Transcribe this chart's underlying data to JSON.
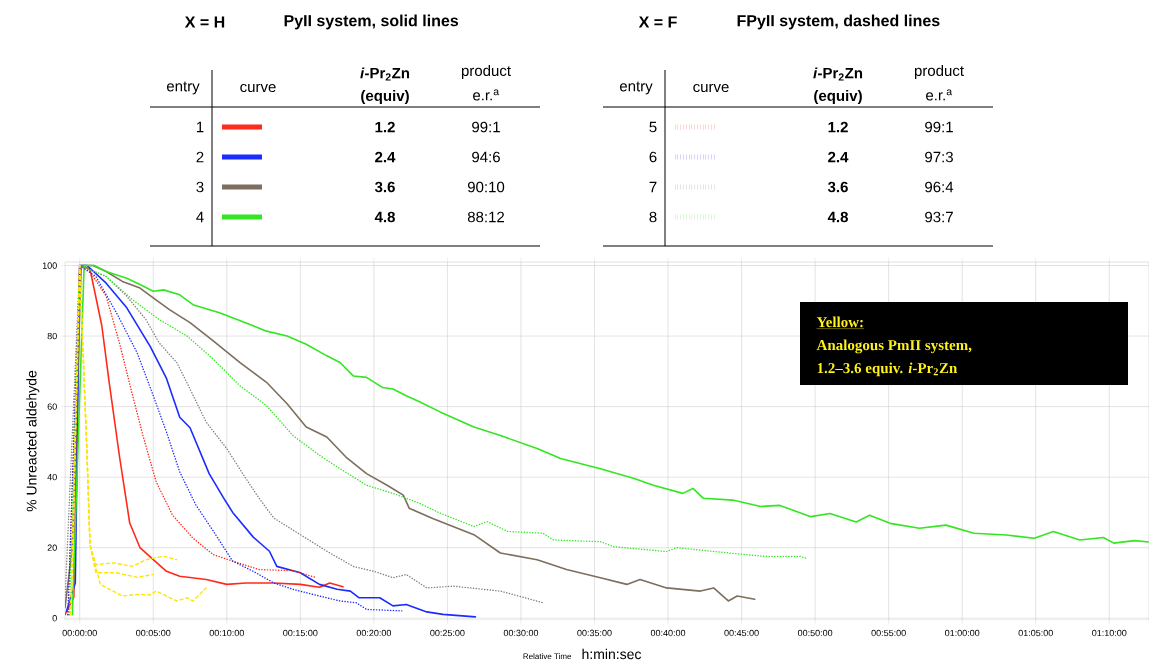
{
  "chart_data": {
    "type": "line",
    "xlabel": "Relative Time",
    "ylabel": "% Unreacted aldehyde",
    "xlim": [
      -1,
      72.7
    ],
    "ylim": [
      -0.5,
      101
    ],
    "xticks": [
      {
        "value": 0,
        "label": "00:00:00"
      },
      {
        "value": 5,
        "label": "00:05:00"
      },
      {
        "value": 10,
        "label": "00:10:00"
      },
      {
        "value": 15,
        "label": "00:15:00"
      },
      {
        "value": 20,
        "label": "00:20:00"
      },
      {
        "value": 25,
        "label": "00:25:00"
      },
      {
        "value": 30,
        "label": "00:30:00"
      },
      {
        "value": 35,
        "label": "00:35:00"
      },
      {
        "value": 40,
        "label": "00:40:00"
      },
      {
        "value": 45,
        "label": "00:45:00"
      },
      {
        "value": 50,
        "label": "00:50:00"
      },
      {
        "value": 55,
        "label": "00:55:00"
      },
      {
        "value": 60,
        "label": "01:00:00"
      },
      {
        "value": 65,
        "label": "01:05:00"
      },
      {
        "value": 70,
        "label": "01:10:00"
      }
    ],
    "yticks": [
      0,
      20,
      40,
      60,
      80,
      100
    ],
    "grid": true,
    "legend": "top",
    "annotations": [
      "X = H",
      "PyII system, solid lines",
      "X = F",
      "FPyII system, dashed lines",
      "entry",
      "curve",
      "*i*-Pr$_{2}$Zn",
      "(equiv)",
      "product",
      "e.r.$^{a}$",
      "entry",
      "curve",
      "*i*-Pr$_{2}$Zn",
      "(equiv)",
      "product",
      "e.r.$^{a}$",
      "1.2",
      "2.4",
      "3.6",
      "4.8",
      "1.2",
      "2.4",
      "3.6",
      "4.8",
      "99:1",
      "94:6",
      "90:10",
      "88:12",
      "99:1",
      "97:3",
      "96:4",
      "93:7",
      "Yellow:",
      "Analogous PmII system,",
      "1.2–3.6 equiv. *i*-Pr$_{2}$Zn",
      "h:min:sec"
    ],
    "series": [
      {
        "name": "1",
        "color": "#ff2a1a",
        "line_style": "solid",
        "x": [
          -1,
          -0.4,
          0,
          0.7,
          1.5,
          2,
          2.7,
          3.4,
          4.1,
          5,
          5.9,
          6.8,
          8.6,
          10,
          11.3,
          13.2,
          15,
          16.3,
          17,
          17.9
        ],
        "values": [
          1,
          6,
          100,
          99,
          83,
          67,
          46,
          27,
          20,
          16.6,
          13.3,
          11.9,
          11,
          9.6,
          10,
          10,
          9.6,
          8.8,
          10,
          8.9
        ]
      },
      {
        "name": "2",
        "color": "#1a2cff",
        "line_style": "solid",
        "x": [
          -0.9,
          -0.3,
          0,
          0.5,
          1.8,
          3.2,
          4.8,
          5.9,
          6.8,
          7.5,
          8.8,
          9.8,
          10.4,
          11.8,
          12.9,
          13.4,
          15,
          16.3,
          17.5,
          18.4,
          19,
          20.4,
          21.3,
          22.2,
          23.6,
          24.7,
          26.9
        ],
        "values": [
          2,
          10,
          100,
          100,
          95,
          88,
          77,
          68,
          57,
          54,
          41,
          34,
          30,
          23,
          19,
          14.7,
          12.9,
          9.6,
          8.2,
          7.7,
          5.8,
          5.8,
          3.5,
          3.9,
          1.8,
          1.1,
          0.4
        ]
      },
      {
        "name": "3",
        "color": "#7d6e5e",
        "line_style": "solid",
        "x": [
          -1,
          -0.5,
          0.1,
          0.9,
          1.8,
          2.9,
          4.1,
          5,
          6.1,
          7.5,
          9.1,
          10.9,
          12.7,
          14.1,
          15.4,
          16.8,
          18.1,
          19.5,
          20.9,
          22,
          22.4,
          24,
          26.8,
          28.6,
          31.1,
          33.1,
          35.4,
          37.2,
          38.1,
          39.9,
          42.2,
          43.1,
          44.1,
          44.7,
          45.9
        ],
        "values": [
          3,
          20,
          100,
          100,
          98.3,
          95.5,
          93.6,
          90.8,
          87.5,
          83.8,
          78.6,
          72.5,
          66.9,
          60.8,
          54.2,
          51.4,
          45.7,
          41,
          37.7,
          34.9,
          31.2,
          28.3,
          23.7,
          18.5,
          16.6,
          13.8,
          11.5,
          9.6,
          11,
          8.6,
          7.7,
          8.6,
          4.9,
          6.3,
          5.4
        ]
      },
      {
        "name": "4",
        "color": "#33e622",
        "line_style": "solid",
        "x": [
          -0.5,
          0.3,
          1,
          1.8,
          3.2,
          4.1,
          5,
          5.7,
          6.8,
          7.7,
          9.5,
          10.7,
          12.7,
          14.1,
          15.4,
          16.8,
          17.7,
          18.6,
          19.5,
          20.6,
          21.3,
          22.2,
          23.1,
          24.5,
          26.8,
          28.6,
          31.1,
          32.7,
          35.4,
          37.7,
          39,
          41,
          41.7,
          42.4,
          44.4,
          46.3,
          47.6,
          49.7,
          51,
          52.8,
          53.7,
          55.1,
          57.1,
          58.9,
          60.8,
          63,
          64.9,
          66.2,
          68,
          69.6,
          70.3,
          71.7,
          72.7
        ],
        "values": [
          1,
          100,
          100,
          98.3,
          96.4,
          94.6,
          92.7,
          93.1,
          91.7,
          88.9,
          86.6,
          84.7,
          81.4,
          80,
          77.7,
          74.4,
          72.5,
          68.7,
          68.3,
          65.4,
          65,
          63.1,
          61.4,
          58.5,
          54.2,
          51.8,
          48.1,
          45.3,
          42.4,
          39.6,
          37.7,
          35.4,
          36.8,
          34,
          33.5,
          31.7,
          32,
          28.8,
          29.7,
          27.3,
          29.2,
          26.9,
          25.5,
          26.4,
          24.1,
          23.6,
          22.7,
          24.6,
          22.2,
          22.9,
          21.3,
          22,
          21.6
        ]
      },
      {
        "name": "5",
        "color": "#ff2a1a",
        "line_style": "dotted",
        "x": [
          -0.8,
          0,
          0.7,
          1.8,
          2.7,
          3.6,
          4.3,
          5.2,
          6.3,
          7.7,
          9.1,
          10.4,
          12.2,
          14.5,
          16.1
        ],
        "values": [
          1,
          100,
          98.3,
          91.3,
          78.1,
          63.1,
          51.8,
          38.7,
          29.3,
          22.7,
          18,
          16.2,
          13.8,
          13.5,
          11.5
        ]
      },
      {
        "name": "6",
        "color": "#1a2cff",
        "line_style": "dotted",
        "x": [
          -0.8,
          0,
          1.1,
          2.5,
          3.9,
          5,
          5.9,
          6.8,
          7.9,
          9.1,
          10.4,
          11.8,
          13.2,
          14.5,
          16.3,
          17.7,
          18.8,
          19.5,
          21.9
        ],
        "values": [
          1,
          100,
          96.9,
          86.6,
          75.3,
          63.1,
          52.8,
          41.5,
          32.1,
          24.6,
          16.2,
          13.3,
          10,
          8.2,
          6.3,
          4.9,
          4.4,
          2.5,
          2.1
        ]
      },
      {
        "name": "7",
        "color": "#7f7f7f",
        "line_style": "dotted",
        "x": [
          -1,
          0,
          1.8,
          3.2,
          4.5,
          5.4,
          6.6,
          7.5,
          8.6,
          10,
          11.3,
          12.2,
          13.2,
          15,
          16.8,
          18.6,
          20,
          21.3,
          22.2,
          23.6,
          25.4,
          28.6,
          31.5
        ],
        "values": [
          5,
          100,
          96.9,
          91.3,
          84.7,
          78.1,
          72.5,
          65,
          55.6,
          48.1,
          39.6,
          34,
          28.4,
          23.7,
          19,
          14.7,
          13.3,
          11.5,
          12.4,
          8.6,
          9.1,
          7.7,
          4.4
        ]
      },
      {
        "name": "8",
        "color": "#33e622",
        "line_style": "dotted",
        "x": [
          -0.7,
          0,
          1.8,
          3.6,
          5.4,
          7.3,
          9.1,
          10.9,
          12.7,
          14.5,
          16.3,
          17.7,
          19.5,
          21.3,
          23.1,
          24.5,
          26.8,
          27.7,
          29.1,
          31.5,
          32.2,
          35.4,
          36.3,
          39.9,
          40.6,
          44.4,
          46.7,
          49,
          49.4
        ],
        "values": [
          1,
          100,
          96.9,
          90.3,
          84.7,
          80,
          73.4,
          65.9,
          60.3,
          51.8,
          46.2,
          42.4,
          37.7,
          35.4,
          32.6,
          29.8,
          26,
          27.4,
          24.6,
          24.1,
          22.2,
          21.7,
          20.3,
          18.9,
          20,
          18.4,
          17.5,
          17.5,
          17
        ]
      },
      {
        "color": "#ffe600",
        "line_style": "dashed",
        "x": [
          -0.6,
          0,
          0.5,
          0.7,
          1.1,
          2.3,
          3.6,
          4.5,
          5.7,
          6.6
        ],
        "values": [
          1,
          100,
          46,
          20.8,
          15.2,
          15.7,
          14.7,
          16.6,
          17.6,
          16.6
        ]
      },
      {
        "color": "#ffe600",
        "line_style": "dashed",
        "x": [
          -0.6,
          0,
          0.5,
          0.7,
          1.1,
          2.5,
          3.9,
          5
        ],
        "values": [
          1,
          100,
          46,
          20.8,
          12.9,
          12.9,
          11.6,
          12.4
        ]
      },
      {
        "color": "#ffe600",
        "line_style": "dashed",
        "x": [
          -0.6,
          0,
          0.5,
          0.7,
          1.4,
          2.9,
          4.1,
          4.8,
          5.2,
          6.6,
          7.3,
          7.7,
          8.6
        ],
        "values": [
          1,
          100,
          46,
          20.8,
          9.6,
          6.3,
          6.8,
          6.6,
          7.7,
          4.9,
          5.8,
          4.9,
          8.6
        ]
      }
    ]
  }
}
